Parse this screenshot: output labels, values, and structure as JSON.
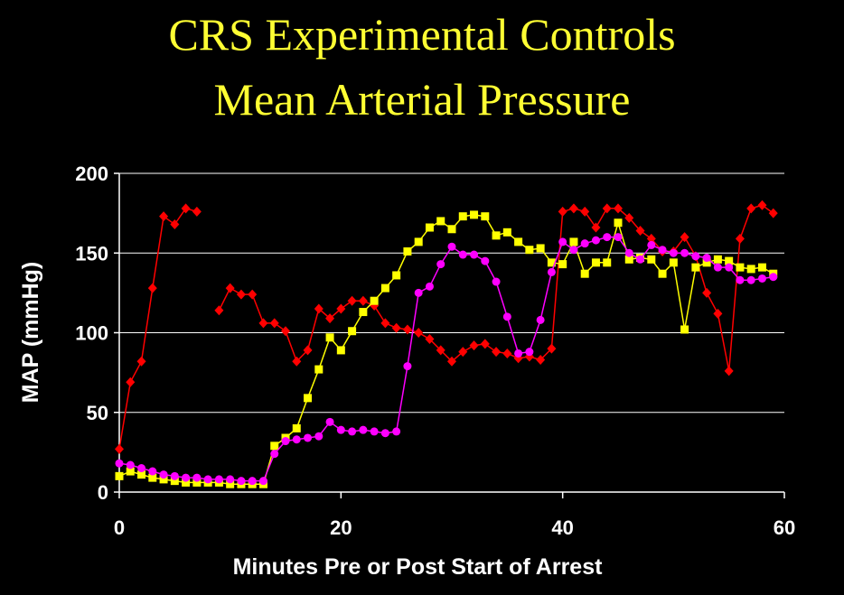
{
  "chart_data": {
    "type": "line",
    "title": "CRS Experimental Controls",
    "subtitle": "Mean Arterial Pressure",
    "xlabel": "Minutes Pre or Post Start of Arrest",
    "ylabel": "MAP (mmHg)",
    "xlim": [
      0,
      60
    ],
    "ylim": [
      0,
      200
    ],
    "xticks": [
      0,
      20,
      40,
      60
    ],
    "yticks": [
      0,
      50,
      100,
      150,
      200
    ],
    "grid": "horizontal",
    "legend": "none",
    "series": [
      {
        "color": "#ff0000",
        "marker": "diamond",
        "segments": [
          [
            [
              0,
              27
            ],
            [
              1,
              69
            ],
            [
              2,
              82
            ],
            [
              3,
              128
            ],
            [
              4,
              173
            ],
            [
              5,
              168
            ],
            [
              6,
              178
            ],
            [
              7,
              176
            ]
          ],
          [
            [
              9,
              114
            ],
            [
              10,
              128
            ],
            [
              11,
              124
            ],
            [
              12,
              124
            ],
            [
              13,
              106
            ],
            [
              14,
              106
            ],
            [
              15,
              101
            ],
            [
              16,
              82
            ],
            [
              17,
              89
            ],
            [
              18,
              115
            ],
            [
              19,
              109
            ],
            [
              20,
              115
            ],
            [
              21,
              120
            ],
            [
              22,
              120
            ],
            [
              23,
              117
            ],
            [
              24,
              106
            ],
            [
              25,
              103
            ],
            [
              26,
              102
            ],
            [
              27,
              100
            ],
            [
              28,
              96
            ],
            [
              29,
              89
            ],
            [
              30,
              82
            ],
            [
              31,
              88
            ],
            [
              32,
              92
            ],
            [
              33,
              93
            ],
            [
              34,
              88
            ],
            [
              35,
              87
            ],
            [
              36,
              84
            ],
            [
              37,
              85
            ],
            [
              38,
              83
            ],
            [
              39,
              90
            ],
            [
              40,
              176
            ],
            [
              41,
              178
            ],
            [
              42,
              176
            ],
            [
              43,
              166
            ],
            [
              44,
              178
            ],
            [
              45,
              178
            ],
            [
              46,
              172
            ],
            [
              47,
              164
            ],
            [
              48,
              159
            ],
            [
              49,
              151
            ],
            [
              50,
              151
            ],
            [
              51,
              160
            ],
            [
              52,
              148
            ],
            [
              53,
              125
            ],
            [
              54,
              112
            ],
            [
              55,
              76
            ],
            [
              56,
              159
            ],
            [
              57,
              178
            ],
            [
              58,
              180
            ],
            [
              59,
              175
            ]
          ]
        ]
      },
      {
        "color": "#ffff00",
        "marker": "square",
        "segments": [
          [
            [
              0,
              10
            ],
            [
              1,
              13
            ],
            [
              2,
              11
            ],
            [
              3,
              9
            ],
            [
              4,
              8
            ],
            [
              5,
              7
            ],
            [
              6,
              6
            ],
            [
              7,
              6
            ],
            [
              8,
              6
            ],
            [
              9,
              6
            ],
            [
              10,
              5
            ],
            [
              11,
              5
            ],
            [
              12,
              5
            ],
            [
              13,
              5
            ],
            [
              14,
              29
            ],
            [
              15,
              34
            ],
            [
              16,
              40
            ],
            [
              17,
              59
            ],
            [
              18,
              77
            ],
            [
              19,
              97
            ],
            [
              20,
              89
            ],
            [
              21,
              101
            ],
            [
              22,
              113
            ],
            [
              23,
              120
            ],
            [
              24,
              128
            ],
            [
              25,
              136
            ],
            [
              26,
              151
            ],
            [
              27,
              157
            ],
            [
              28,
              166
            ],
            [
              29,
              170
            ],
            [
              30,
              165
            ],
            [
              31,
              173
            ],
            [
              32,
              174
            ],
            [
              33,
              173
            ],
            [
              34,
              161
            ],
            [
              35,
              163
            ],
            [
              36,
              157
            ],
            [
              37,
              152
            ],
            [
              38,
              153
            ],
            [
              39,
              144
            ],
            [
              40,
              143
            ],
            [
              41,
              157
            ],
            [
              42,
              137
            ],
            [
              43,
              144
            ],
            [
              44,
              144
            ],
            [
              45,
              169
            ],
            [
              46,
              146
            ],
            [
              47,
              147
            ],
            [
              48,
              146
            ],
            [
              49,
              137
            ],
            [
              50,
              144
            ],
            [
              51,
              102
            ],
            [
              52,
              141
            ],
            [
              53,
              144
            ],
            [
              54,
              146
            ],
            [
              55,
              145
            ],
            [
              56,
              141
            ],
            [
              57,
              140
            ],
            [
              58,
              141
            ],
            [
              59,
              137
            ]
          ]
        ]
      },
      {
        "color": "#ff00ff",
        "marker": "circle",
        "segments": [
          [
            [
              0,
              18
            ],
            [
              1,
              17
            ],
            [
              2,
              15
            ],
            [
              3,
              13
            ],
            [
              4,
              11
            ],
            [
              5,
              10
            ],
            [
              6,
              9
            ],
            [
              7,
              9
            ],
            [
              8,
              8
            ],
            [
              9,
              8
            ],
            [
              10,
              8
            ],
            [
              11,
              7
            ],
            [
              12,
              7
            ],
            [
              13,
              7
            ],
            [
              14,
              24
            ],
            [
              15,
              32
            ],
            [
              16,
              33
            ],
            [
              17,
              34
            ],
            [
              18,
              35
            ],
            [
              19,
              44
            ],
            [
              20,
              39
            ],
            [
              21,
              38
            ],
            [
              22,
              39
            ],
            [
              23,
              38
            ],
            [
              24,
              37
            ],
            [
              25,
              38
            ],
            [
              26,
              79
            ],
            [
              27,
              125
            ],
            [
              28,
              129
            ],
            [
              29,
              143
            ],
            [
              30,
              154
            ],
            [
              31,
              149
            ],
            [
              32,
              149
            ],
            [
              33,
              145
            ],
            [
              34,
              132
            ],
            [
              35,
              110
            ],
            [
              36,
              87
            ],
            [
              37,
              88
            ],
            [
              38,
              108
            ],
            [
              39,
              138
            ],
            [
              40,
              157
            ],
            [
              41,
              152
            ],
            [
              42,
              156
            ],
            [
              43,
              158
            ],
            [
              44,
              160
            ],
            [
              45,
              160
            ],
            [
              46,
              150
            ],
            [
              47,
              146
            ],
            [
              48,
              155
            ],
            [
              49,
              152
            ],
            [
              50,
              150
            ],
            [
              51,
              150
            ],
            [
              52,
              148
            ],
            [
              53,
              147
            ],
            [
              54,
              141
            ],
            [
              55,
              141
            ],
            [
              56,
              133
            ],
            [
              57,
              133
            ],
            [
              58,
              134
            ],
            [
              59,
              135
            ]
          ]
        ]
      }
    ]
  }
}
